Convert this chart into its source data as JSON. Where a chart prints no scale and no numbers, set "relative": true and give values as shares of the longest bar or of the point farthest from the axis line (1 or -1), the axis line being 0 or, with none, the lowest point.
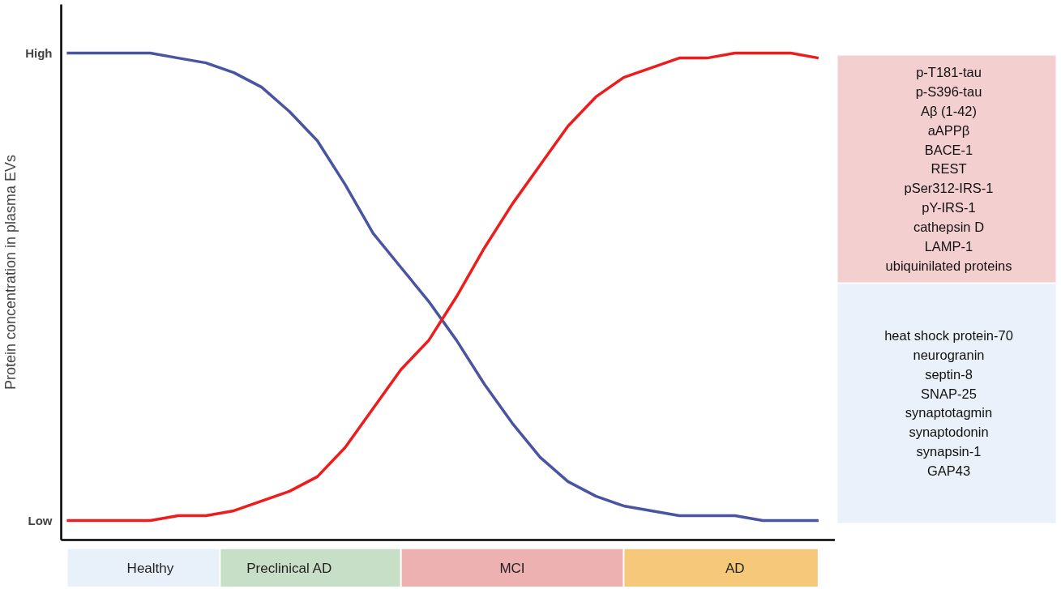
{
  "chart_data": {
    "type": "line",
    "relative": true,
    "ylabel": "Protein concentration in plasma EVs",
    "categories": [
      null,
      null,
      null,
      "Healthy",
      null,
      null,
      null,
      null,
      "Preclinical AD",
      null,
      null,
      null,
      null,
      null,
      null,
      null,
      "MCI",
      null,
      null,
      null,
      null,
      null,
      null,
      null,
      "AD",
      null,
      null,
      null
    ],
    "series": [
      {
        "color": "#4a55a2",
        "values": [
          1.0,
          1.0,
          1.0,
          1.0,
          0.99,
          0.98,
          0.96,
          0.93,
          0.88,
          0.82,
          0.73,
          0.63,
          0.56,
          0.49,
          0.41,
          0.32,
          0.24,
          0.17,
          0.12,
          0.09,
          0.07,
          0.06,
          0.05,
          0.05,
          0.05,
          0.04,
          0.04,
          0.04
        ]
      },
      {
        "color": "#ee1c1c",
        "values": [
          0.04,
          0.04,
          0.04,
          0.04,
          0.05,
          0.05,
          0.06,
          0.08,
          0.1,
          0.13,
          0.19,
          0.27,
          0.35,
          0.41,
          0.5,
          0.6,
          0.69,
          0.77,
          0.85,
          0.91,
          0.95,
          0.97,
          0.99,
          0.99,
          1.0,
          1.0,
          1.0,
          0.99
        ]
      }
    ],
    "grid": false,
    "line_style": "solid",
    "marker": "none",
    "annotations": [
      "High",
      "Low",
      "p-T181-tau\np-S396-tau\nAβ (1-42)\naAPPβ\nBACE-1\nREST\npSer312-IRS-1\npY-IRS-1\ncathepsin D\nLAMP-1\nubiquinilated proteins",
      "heat shock protein-70\nneurogranin\nseptin-8\nSNAP-25\nsynaptotagmin\nsynaptodonin\nsynapsin-1\nGAP43"
    ]
  }
}
